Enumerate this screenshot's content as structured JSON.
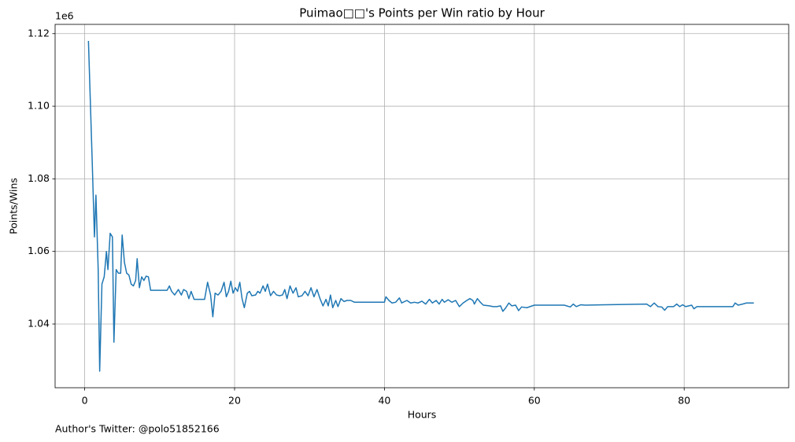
{
  "chart_data": {
    "type": "line",
    "title": "Puimao□□'s Points per Win ratio by Hour",
    "x_label": "Hours",
    "y_label": "Points/Wins",
    "y_offset_text": "1e6",
    "footnote": "Author's Twitter: @polo51852166",
    "color": "#1f77b4",
    "grid": true,
    "xlim": [
      -3.95,
      93.95
    ],
    "xticks": [
      0,
      20,
      40,
      60,
      80
    ],
    "ylim": [
      1.02245,
      1.12255
    ],
    "yticks": [
      1.04,
      1.06,
      1.08,
      {
        "value": 1.1,
        "label": "1.10"
      },
      1.12
    ],
    "x": [
      0.5,
      1.0,
      1.3,
      1.5,
      1.8,
      2.0,
      2.3,
      2.6,
      2.9,
      3.1,
      3.4,
      3.7,
      3.9,
      4.2,
      4.5,
      4.8,
      5.0,
      5.3,
      5.6,
      5.9,
      6.2,
      6.5,
      6.8,
      7.0,
      7.3,
      7.6,
      7.9,
      8.2,
      8.5,
      8.8,
      11.0,
      11.3,
      11.6,
      12.0,
      12.5,
      12.9,
      13.2,
      13.6,
      13.9,
      14.2,
      14.6,
      16.0,
      16.4,
      16.8,
      17.1,
      17.4,
      17.8,
      18.2,
      18.6,
      18.9,
      19.2,
      19.5,
      19.8,
      20.1,
      20.4,
      20.7,
      21.0,
      21.3,
      21.7,
      22.0,
      22.3,
      22.8,
      23.1,
      23.4,
      23.8,
      24.1,
      24.4,
      24.8,
      25.2,
      25.6,
      26.0,
      26.4,
      26.7,
      27.0,
      27.4,
      27.8,
      28.2,
      28.5,
      29.0,
      29.4,
      29.8,
      30.2,
      30.6,
      31.0,
      31.4,
      31.8,
      32.2,
      32.5,
      32.8,
      33.1,
      33.5,
      33.8,
      34.2,
      34.6,
      35.0,
      35.5,
      36.0,
      40.0,
      40.2,
      40.6,
      41.0,
      41.5,
      42.0,
      42.3,
      43.0,
      43.5,
      44.0,
      44.5,
      45.0,
      45.5,
      46.0,
      46.4,
      46.9,
      47.3,
      47.7,
      48.0,
      48.5,
      49.0,
      49.5,
      50.0,
      50.5,
      51.0,
      51.4,
      51.8,
      52.0,
      52.4,
      52.8,
      53.2,
      54.0,
      54.5,
      55.0,
      55.5,
      55.8,
      56.2,
      56.6,
      57.0,
      57.5,
      57.9,
      58.3,
      59.0,
      60.0,
      64.0,
      64.8,
      65.2,
      65.6,
      66.2,
      66.8,
      75.0,
      75.5,
      76.0,
      76.5,
      77.0,
      77.4,
      77.8,
      78.6,
      79.0,
      79.4,
      79.8,
      80.2,
      81.0,
      81.3,
      81.7,
      86.5,
      86.8,
      87.2,
      87.8,
      88.3,
      89.3
    ],
    "values": [
      1.118,
      1.085,
      1.064,
      1.0755,
      1.055,
      1.027,
      1.051,
      1.053,
      1.06,
      1.055,
      1.065,
      1.064,
      1.035,
      1.055,
      1.054,
      1.054,
      1.0645,
      1.057,
      1.054,
      1.0535,
      1.051,
      1.0505,
      1.052,
      1.058,
      1.05,
      1.053,
      1.052,
      1.0532,
      1.053,
      1.0493,
      1.0493,
      1.0505,
      1.049,
      1.048,
      1.0495,
      1.048,
      1.0495,
      1.049,
      1.047,
      1.049,
      1.0468,
      1.0468,
      1.0515,
      1.048,
      1.042,
      1.0485,
      1.048,
      1.049,
      1.0515,
      1.0475,
      1.049,
      1.0518,
      1.0485,
      1.05,
      1.049,
      1.0515,
      1.047,
      1.0445,
      1.0485,
      1.049,
      1.0478,
      1.048,
      1.049,
      1.0485,
      1.0505,
      1.049,
      1.051,
      1.0478,
      1.049,
      1.048,
      1.0478,
      1.048,
      1.0495,
      1.047,
      1.0505,
      1.0485,
      1.05,
      1.0475,
      1.0478,
      1.049,
      1.0478,
      1.05,
      1.0475,
      1.0495,
      1.047,
      1.045,
      1.0468,
      1.045,
      1.048,
      1.0445,
      1.0465,
      1.0448,
      1.047,
      1.0462,
      1.0465,
      1.0465,
      1.046,
      1.046,
      1.0475,
      1.0465,
      1.0458,
      1.046,
      1.0472,
      1.0458,
      1.0465,
      1.0458,
      1.046,
      1.0458,
      1.0463,
      1.0455,
      1.0468,
      1.0458,
      1.0465,
      1.0455,
      1.0468,
      1.046,
      1.0467,
      1.046,
      1.0465,
      1.0448,
      1.0458,
      1.0465,
      1.047,
      1.0465,
      1.0455,
      1.047,
      1.046,
      1.0452,
      1.045,
      1.0448,
      1.0448,
      1.045,
      1.0435,
      1.0445,
      1.0458,
      1.045,
      1.0452,
      1.0437,
      1.0447,
      1.0445,
      1.0452,
      1.0452,
      1.0447,
      1.0455,
      1.0448,
      1.0453,
      1.0452,
      1.0455,
      1.0448,
      1.0458,
      1.0448,
      1.0447,
      1.0438,
      1.0448,
      1.0448,
      1.0455,
      1.0448,
      1.0453,
      1.0448,
      1.0452,
      1.0442,
      1.0448,
      1.0448,
      1.0458,
      1.0452,
      1.0455,
      1.0458,
      1.0458
    ]
  }
}
